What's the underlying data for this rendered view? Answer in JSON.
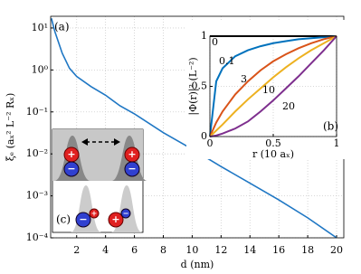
{
  "chart_data": [
    {
      "type": "line",
      "annotation": "(a)",
      "x_label": "d (nm)",
      "y_label": "ξₑ (aₓ² L⁻² Rₓ)",
      "x": [
        0.25,
        0.5,
        1,
        1.5,
        2,
        3,
        4,
        5,
        6,
        8,
        10,
        12,
        14,
        16,
        18,
        20
      ],
      "values": [
        17,
        8,
        2.5,
        1.1,
        0.7,
        0.4,
        0.25,
        0.14,
        0.09,
        0.032,
        0.013,
        0.005,
        0.002,
        0.0008,
        0.0003,
        0.0001
      ],
      "color": "#1f77c4",
      "log_y": true,
      "grid": true,
      "xlim": [
        0.2,
        20.5
      ],
      "ylim": [
        0.0001,
        19
      ],
      "xticks": [
        2,
        4,
        6,
        8,
        10,
        12,
        14,
        16,
        18,
        20
      ],
      "yticks": [
        {
          "value": 10,
          "label": "10¹"
        },
        {
          "value": 1,
          "label": "10⁰"
        },
        {
          "value": 0.1,
          "label": "10⁻¹"
        },
        {
          "value": 0.01,
          "label": "10⁻²"
        },
        {
          "value": 0.001,
          "label": "10⁻³"
        },
        {
          "value": 0.0001,
          "label": "10⁻⁴"
        }
      ]
    },
    {
      "type": "line",
      "annotation": "(b)",
      "x_label": "r (10 aₓ)",
      "y_label": "|Φ(r)|² (L⁻²)",
      "x": [
        0,
        0.05,
        0.1,
        0.2,
        0.3,
        0.4,
        0.5,
        0.6,
        0.7,
        0.8,
        0.9,
        1
      ],
      "series": [
        {
          "name": "0",
          "color": "#000000",
          "values": [
            1,
            1,
            1,
            1,
            1,
            1,
            1,
            1,
            1,
            1,
            1,
            1
          ]
        },
        {
          "name": "0.1",
          "color": "#0072bd",
          "values": [
            0,
            0.55,
            0.68,
            0.8,
            0.86,
            0.9,
            0.93,
            0.95,
            0.97,
            0.98,
            0.99,
            1
          ]
        },
        {
          "name": "3",
          "color": "#d95319",
          "values": [
            0,
            0.14,
            0.25,
            0.42,
            0.55,
            0.66,
            0.75,
            0.82,
            0.88,
            0.93,
            0.97,
            1
          ]
        },
        {
          "name": "10",
          "color": "#edb120",
          "values": [
            0,
            0.06,
            0.12,
            0.25,
            0.37,
            0.48,
            0.59,
            0.69,
            0.78,
            0.86,
            0.93,
            1
          ]
        },
        {
          "name": "20",
          "color": "#7e2f8e",
          "values": [
            0,
            0.01,
            0.03,
            0.08,
            0.15,
            0.25,
            0.36,
            0.48,
            0.6,
            0.73,
            0.86,
            1
          ]
        }
      ],
      "grid": true,
      "xlim": [
        0,
        1
      ],
      "ylim": [
        0,
        1
      ],
      "xticks": [
        0,
        0.5,
        1
      ],
      "yticks": [
        0,
        0.5,
        1
      ]
    }
  ],
  "inset_c": {
    "label": "(c)",
    "plus": "+",
    "minus": "−"
  }
}
